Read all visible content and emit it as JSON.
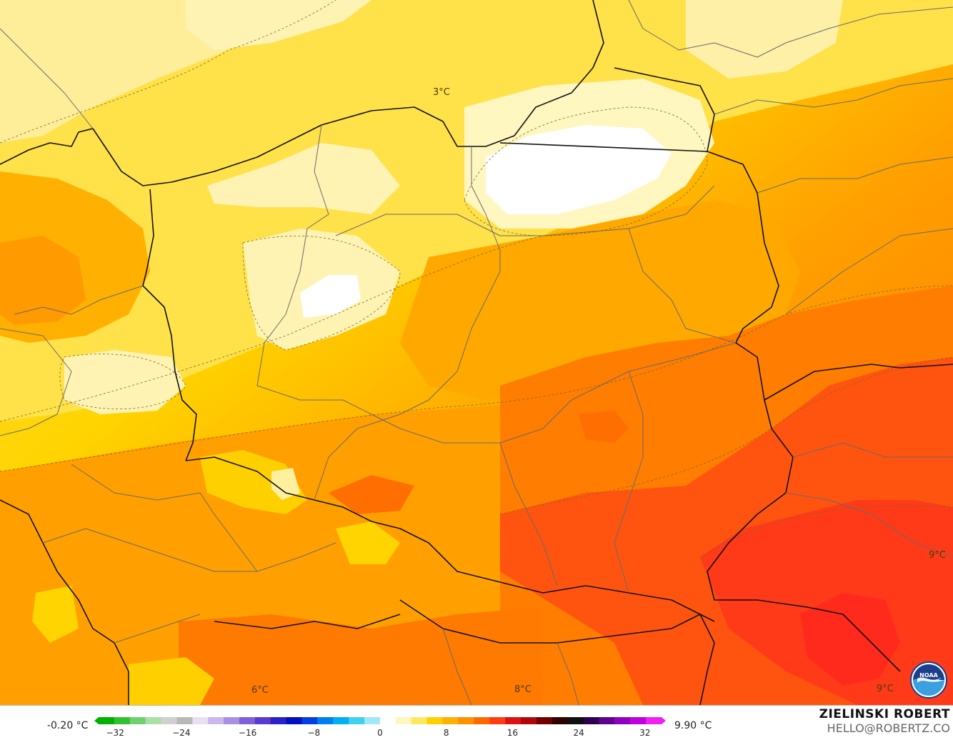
{
  "map": {
    "contour_labels": [
      {
        "id": "label-3c",
        "text": "3°C"
      },
      {
        "id": "label-6c",
        "text": "6°C"
      },
      {
        "id": "label-8c",
        "text": "8°C"
      },
      {
        "id": "label-9c-east",
        "text": "9°C"
      },
      {
        "id": "label-9c-se",
        "text": "9°C"
      }
    ],
    "field_colors": {
      "white": "#ffffff",
      "pale_yellow": "#fff3b3",
      "light_yellow": "#ffe566",
      "yellow": "#ffd400",
      "amber": "#ffb000",
      "orange": "#ff9000",
      "dark_orange": "#ff6e00",
      "red_orange": "#ff4a10",
      "red": "#ff2e1a"
    },
    "border_colors": {
      "national": "#111111",
      "regional": "#6a6a6a"
    }
  },
  "legend": {
    "min_label": "-0.20 °C",
    "max_label": "9.90 °C",
    "ticks": [
      "−32",
      "−24",
      "−16",
      "−8",
      "0",
      "8",
      "16",
      "24",
      "32"
    ],
    "tick_values": [
      -32,
      -24,
      -16,
      -8,
      0,
      8,
      16,
      24,
      32
    ],
    "range": [
      -34,
      34
    ],
    "colors": [
      "#00b000",
      "#30c030",
      "#70d070",
      "#a8e0a8",
      "#d0d0d0",
      "#b8b8b8",
      "#e6e0f0",
      "#cbb8ea",
      "#a890e0",
      "#8060d8",
      "#5a3ad0",
      "#2a20c8",
      "#0010c0",
      "#0040e0",
      "#0080f0",
      "#00b0f0",
      "#40d0f0",
      "#a0e8f8",
      "#ffffff",
      "#fff6c0",
      "#ffe860",
      "#ffd000",
      "#ffb000",
      "#ff9000",
      "#ff6a00",
      "#ff3c10",
      "#e01010",
      "#b00808",
      "#700000",
      "#300000",
      "#101010",
      "#300050",
      "#600090",
      "#9000c0",
      "#c000e0",
      "#f020f0"
    ]
  },
  "branding": {
    "author": "ZIELINSKI ROBERT",
    "email": "HELLO@ROBERTZ.CO",
    "logo_text": "NOAA"
  }
}
